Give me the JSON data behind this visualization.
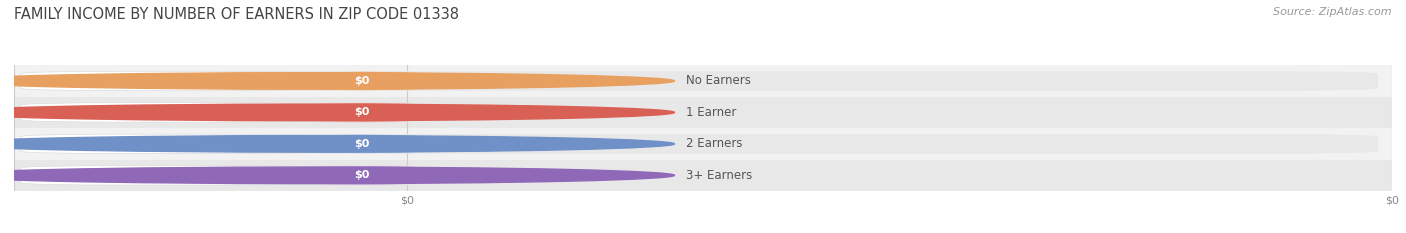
{
  "title": "FAMILY INCOME BY NUMBER OF EARNERS IN ZIP CODE 01338",
  "source": "Source: ZipAtlas.com",
  "categories": [
    "No Earners",
    "1 Earner",
    "2 Earners",
    "3+ Earners"
  ],
  "values": [
    0,
    0,
    0,
    0
  ],
  "bar_colors": [
    "#f5c08a",
    "#f0a09a",
    "#a8bfe0",
    "#c8aede"
  ],
  "circle_colors": [
    "#e8a060",
    "#d96055",
    "#7090c8",
    "#9068b8"
  ],
  "bar_bg_color": "#e8e8e8",
  "white_pill_color": "#ffffff",
  "stripe_colors": [
    "#f2f2f2",
    "#e8e8e8"
  ],
  "title_color": "#444444",
  "label_color": "#555555",
  "value_label_color": "#ffffff",
  "source_color": "#999999",
  "grid_color": "#cccccc",
  "figsize": [
    14.06,
    2.33
  ],
  "dpi": 100
}
